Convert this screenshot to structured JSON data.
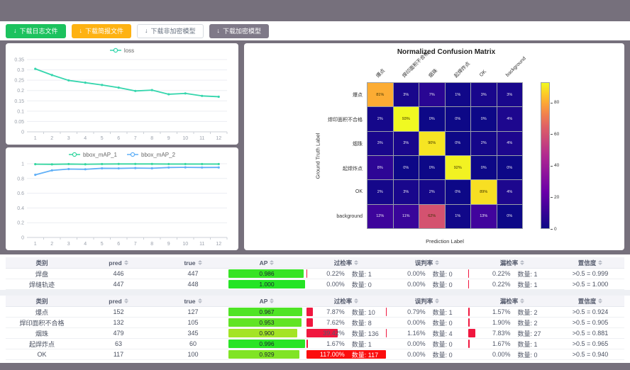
{
  "colors": {
    "page_bg": "#76707c",
    "panel_bg": "#ffffff",
    "button_green": "#1cc25e",
    "button_orange": "#feb212",
    "button_dark": "#7f7988",
    "loss_line": "#35d6ad",
    "map1_line": "#35d6a0",
    "map2_line": "#61b0f7",
    "rate_bar_red": "#f0173f",
    "rate_bar_full_red": "#fb0d0d"
  },
  "toolbar": {
    "download_icon": "↓",
    "buttons": [
      {
        "label": "下载日志文件",
        "style": "success"
      },
      {
        "label": "下载简报文件",
        "style": "warning"
      },
      {
        "label": "下载非加密模型",
        "style": "default"
      },
      {
        "label": "下载加密模型",
        "style": "dark"
      }
    ]
  },
  "chart_data": [
    {
      "type": "line",
      "title": "",
      "legend_position": "top",
      "x": [
        1,
        2,
        3,
        4,
        5,
        6,
        7,
        8,
        9,
        10,
        11,
        12
      ],
      "series": [
        {
          "name": "loss",
          "color": "#35d6ad",
          "values": [
            0.305,
            0.275,
            0.249,
            0.238,
            0.227,
            0.214,
            0.198,
            0.202,
            0.182,
            0.186,
            0.174,
            0.17
          ]
        }
      ],
      "yticks": [
        0,
        0.05,
        0.1,
        0.15,
        0.2,
        0.25,
        0.3,
        0.35
      ],
      "ylim": [
        0,
        0.35
      ],
      "grid": true
    },
    {
      "type": "line",
      "title": "",
      "legend_position": "top",
      "x": [
        1,
        2,
        3,
        4,
        5,
        6,
        7,
        8,
        9,
        10,
        11,
        12
      ],
      "series": [
        {
          "name": "bbox_mAP_1",
          "color": "#35d6a0",
          "values": [
            0.994,
            0.992,
            0.996,
            0.993,
            0.996,
            0.997,
            0.997,
            0.997,
            0.996,
            0.996,
            0.996,
            0.996
          ]
        },
        {
          "name": "bbox_mAP_2",
          "color": "#61b0f7",
          "values": [
            0.85,
            0.91,
            0.928,
            0.925,
            0.938,
            0.937,
            0.941,
            0.939,
            0.949,
            0.951,
            0.949,
            0.95
          ]
        }
      ],
      "yticks": [
        0,
        0.2,
        0.4,
        0.6,
        0.8,
        1
      ],
      "ylim": [
        0,
        1
      ],
      "grid": true
    },
    {
      "type": "heatmap",
      "title": "Normalized Confusion Matrix",
      "xlabel": "Prediction Label",
      "ylabel": "Ground Truth Label",
      "colormap": "plasma",
      "vmax": 93,
      "colorbar_ticks": [
        0,
        20,
        40,
        60,
        80
      ],
      "labels": [
        "爆点",
        "焊印面积不合格",
        "烟珠",
        "起焊炸点",
        "OK",
        "background"
      ],
      "values_percent": [
        [
          81,
          3,
          7,
          1,
          3,
          3
        ],
        [
          2,
          93,
          0,
          0,
          0,
          4
        ],
        [
          3,
          3,
          90,
          0,
          2,
          4
        ],
        [
          8,
          0,
          0,
          92,
          0,
          0
        ],
        [
          2,
          3,
          2,
          0,
          89,
          4
        ],
        [
          12,
          11,
          62,
          1,
          13,
          0
        ]
      ]
    }
  ],
  "tables": {
    "count_label": "数量:",
    "sort_icon": "⇅",
    "columns": [
      {
        "key": "name",
        "label": "类别",
        "sortable": false
      },
      {
        "key": "pred",
        "label": "pred",
        "sortable": true
      },
      {
        "key": "true",
        "label": "true",
        "sortable": true
      },
      {
        "key": "ap",
        "label": "AP",
        "sortable": true
      },
      {
        "key": "over",
        "label": "过检率",
        "sortable": true
      },
      {
        "key": "mis",
        "label": "误判率",
        "sortable": true
      },
      {
        "key": "miss",
        "label": "漏检率",
        "sortable": true
      },
      {
        "key": "conf",
        "label": "置信度",
        "sortable": true
      }
    ],
    "groups": [
      {
        "rows": [
          {
            "name": "焊盘",
            "pred": 446,
            "true": 447,
            "ap": 0.986,
            "over_pct": "0.22%",
            "over_count": 1,
            "mis_pct": "0.00%",
            "mis_count": 0,
            "miss_pct": "0.22%",
            "miss_count": 1,
            "conf": ">0.5 = 0.999"
          },
          {
            "name": "焊缝轨迹",
            "pred": 447,
            "true": 448,
            "ap": 1.0,
            "over_pct": "0.00%",
            "over_count": 0,
            "mis_pct": "0.00%",
            "mis_count": 0,
            "miss_pct": "0.22%",
            "miss_count": 1,
            "conf": ">0.5 = 1.000"
          }
        ]
      },
      {
        "rows": [
          {
            "name": "爆点",
            "pred": 152,
            "true": 127,
            "ap": 0.967,
            "over_pct": "7.87%",
            "over_count": 10,
            "mis_pct": "0.79%",
            "mis_count": 1,
            "miss_pct": "1.57%",
            "miss_count": 2,
            "conf": ">0.5 = 0.924"
          },
          {
            "name": "焊印面积不合格",
            "pred": 132,
            "true": 105,
            "ap": 0.953,
            "over_pct": "7.62%",
            "over_count": 8,
            "mis_pct": "0.00%",
            "mis_count": 0,
            "miss_pct": "1.90%",
            "miss_count": 2,
            "conf": ">0.5 = 0.905"
          },
          {
            "name": "烟珠",
            "pred": 479,
            "true": 345,
            "ap": 0.9,
            "over_pct": "39.42%",
            "over_count": 136,
            "mis_pct": "1.16%",
            "mis_count": 4,
            "miss_pct": "7.83%",
            "miss_count": 27,
            "conf": ">0.5 = 0.881"
          },
          {
            "name": "起焊炸点",
            "pred": 63,
            "true": 60,
            "ap": 0.996,
            "over_pct": "1.67%",
            "over_count": 1,
            "mis_pct": "0.00%",
            "mis_count": 0,
            "miss_pct": "1.67%",
            "miss_count": 1,
            "conf": ">0.5 = 0.965"
          },
          {
            "name": "OK",
            "pred": 117,
            "true": 100,
            "ap": 0.929,
            "over_pct": "117.00%",
            "over_count": 117,
            "mis_pct": "0.00%",
            "mis_count": 0,
            "miss_pct": "0.00%",
            "miss_count": 0,
            "conf": ">0.5 = 0.940"
          }
        ]
      }
    ]
  }
}
